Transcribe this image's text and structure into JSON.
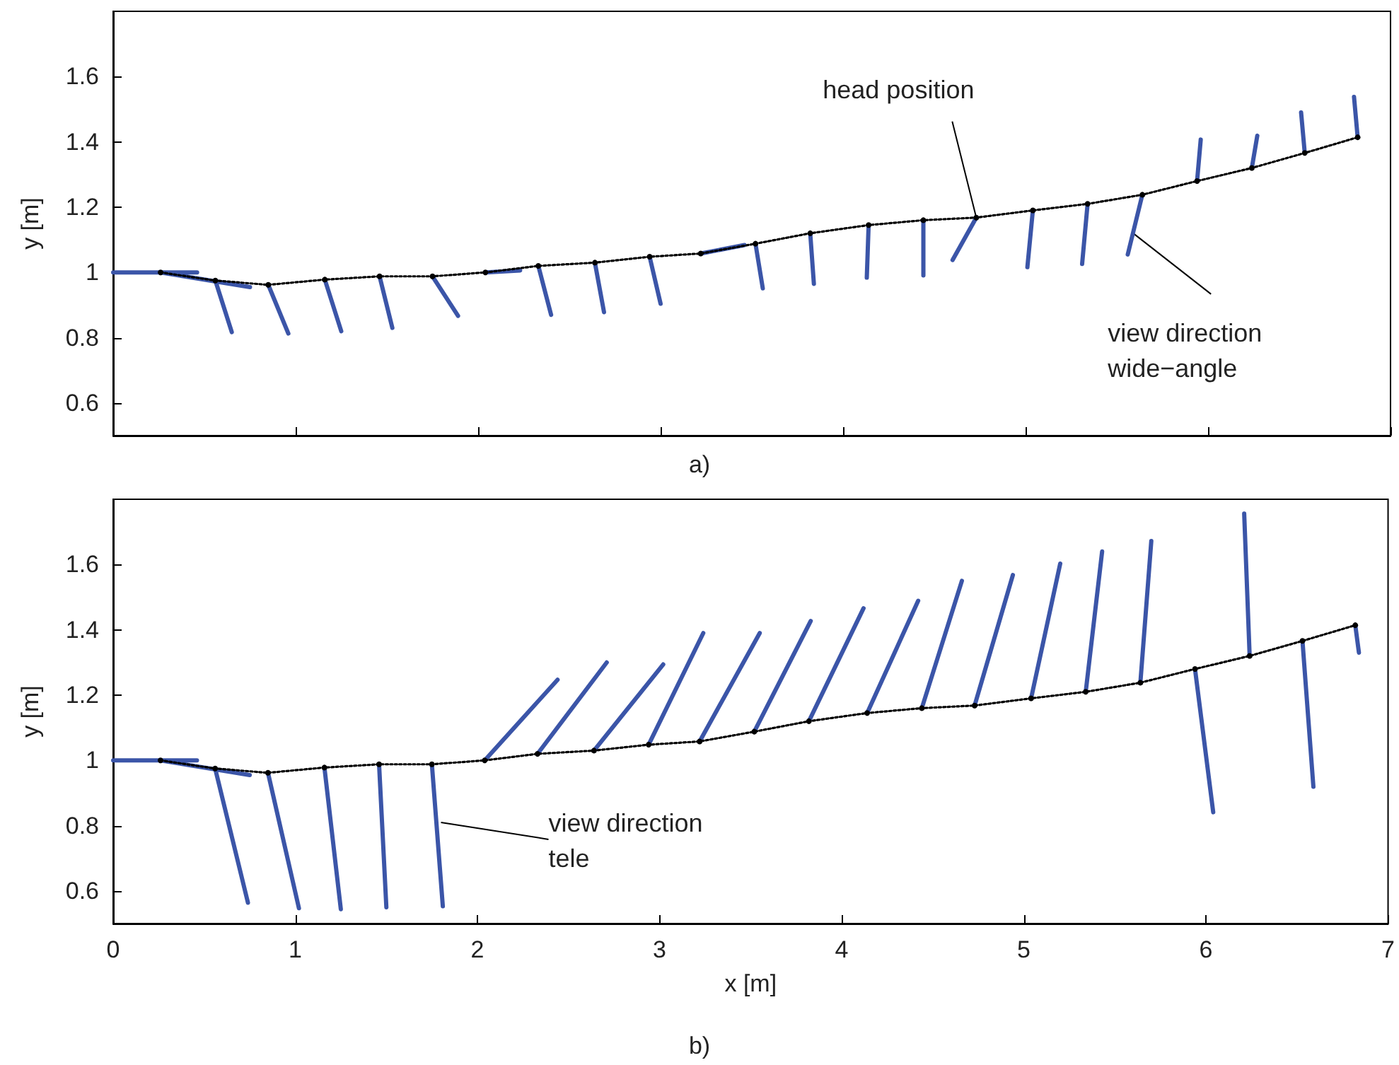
{
  "chart_data": [
    {
      "type": "line",
      "ylabel": "y [m]",
      "xlim": [
        0,
        7
      ],
      "xticks": [
        0,
        1,
        2,
        3,
        4,
        5,
        6,
        7
      ],
      "ylim": [
        0.5,
        1.8
      ],
      "yticks": [
        0.6,
        0.8,
        1,
        1.2,
        1.4,
        1.6
      ],
      "tick_labels": "y",
      "grid": false,
      "series": [
        {
          "color": "#3b55a8",
          "line_style": "solid",
          "marker": "none",
          "x": [
            0,
            0.46,
            null,
            0.26,
            0.75,
            null,
            0.56,
            0.65,
            null,
            0.85,
            0.96,
            null,
            1.16,
            1.25,
            null,
            1.46,
            1.53,
            null,
            1.75,
            1.89,
            null,
            2.04,
            2.23,
            null,
            2.33,
            2.4,
            null,
            2.64,
            2.69,
            null,
            2.94,
            3.0,
            null,
            3.22,
            3.46,
            null,
            3.52,
            3.56,
            null,
            3.82,
            3.84,
            null,
            4.14,
            4.13,
            null,
            4.44,
            4.44,
            null,
            4.73,
            4.6,
            null,
            5.04,
            5.01,
            null,
            5.34,
            5.31,
            null,
            5.64,
            5.56,
            null,
            5.94,
            5.96,
            null,
            6.24,
            6.27,
            null,
            6.53,
            6.51,
            null,
            6.82,
            6.8
          ],
          "values": [
            1.0,
            1.0,
            null,
            1.0,
            0.955,
            null,
            0.975,
            0.817,
            null,
            0.962,
            0.813,
            null,
            0.978,
            0.82,
            null,
            0.988,
            0.83,
            null,
            0.988,
            0.867,
            null,
            1.0,
            1.006,
            null,
            1.02,
            0.87,
            null,
            1.03,
            0.878,
            null,
            1.048,
            0.904,
            null,
            1.058,
            1.084,
            null,
            1.088,
            0.951,
            null,
            1.12,
            0.965,
            null,
            1.145,
            0.984,
            null,
            1.16,
            0.991,
            null,
            1.168,
            1.038,
            null,
            1.19,
            1.016,
            null,
            1.21,
            1.026,
            null,
            1.238,
            1.055,
            null,
            1.28,
            1.407,
            null,
            1.32,
            1.419,
            null,
            1.366,
            1.49,
            null,
            1.414,
            1.538
          ]
        },
        {
          "color": "#000000",
          "line_style": "dotted",
          "marker": "circle",
          "x": [
            0.26,
            0.56,
            0.85,
            1.16,
            1.46,
            1.75,
            2.04,
            2.33,
            2.64,
            2.94,
            3.22,
            3.52,
            3.82,
            4.14,
            4.44,
            4.73,
            5.04,
            5.34,
            5.64,
            5.94,
            6.24,
            6.53,
            6.82
          ],
          "values": [
            1.0,
            0.975,
            0.962,
            0.978,
            0.988,
            0.988,
            1.0,
            1.02,
            1.03,
            1.048,
            1.058,
            1.088,
            1.12,
            1.145,
            1.16,
            1.168,
            1.19,
            1.21,
            1.238,
            1.28,
            1.32,
            1.366,
            1.414
          ]
        }
      ],
      "annotations": [
        "a)",
        {
          "text": "head position",
          "x": 4.73,
          "y": 1.168
        },
        {
          "text": "view direction\nwide−angle",
          "x": 5.59,
          "y": 1.12
        }
      ]
    },
    {
      "type": "line",
      "xlabel": "x [m]",
      "ylabel": "y [m]",
      "xlim": [
        0,
        7
      ],
      "xticks": [
        0,
        1,
        2,
        3,
        4,
        5,
        6,
        7
      ],
      "ylim": [
        0.5,
        1.8
      ],
      "yticks": [
        0.6,
        0.8,
        1,
        1.2,
        1.4,
        1.6
      ],
      "grid": false,
      "series": [
        {
          "color": "#3b55a8",
          "line_style": "solid",
          "marker": "none",
          "x": [
            0,
            0.46,
            null,
            0.26,
            0.75,
            null,
            0.56,
            0.74,
            null,
            0.85,
            1.02,
            null,
            1.16,
            1.25,
            null,
            1.46,
            1.5,
            null,
            1.75,
            1.81,
            null,
            2.04,
            2.44,
            null,
            2.33,
            2.71,
            null,
            2.64,
            3.02,
            null,
            2.94,
            3.24,
            null,
            3.22,
            3.55,
            null,
            3.52,
            3.83,
            null,
            3.82,
            4.12,
            null,
            4.14,
            4.42,
            null,
            4.44,
            4.66,
            null,
            4.73,
            4.94,
            null,
            5.04,
            5.2,
            null,
            5.34,
            5.43,
            null,
            5.64,
            5.7,
            null,
            5.94,
            6.04,
            null,
            6.24,
            6.21,
            null,
            6.53,
            6.59,
            null,
            6.82,
            6.84
          ],
          "values": [
            1.0,
            1.0,
            null,
            1.0,
            0.955,
            null,
            0.975,
            0.564,
            null,
            0.962,
            0.547,
            null,
            0.978,
            0.544,
            null,
            0.988,
            0.55,
            null,
            0.988,
            0.553,
            null,
            1.0,
            1.247,
            null,
            1.02,
            1.3,
            null,
            1.03,
            1.294,
            null,
            1.048,
            1.39,
            null,
            1.058,
            1.39,
            null,
            1.088,
            1.427,
            null,
            1.12,
            1.466,
            null,
            1.145,
            1.489,
            null,
            1.16,
            1.55,
            null,
            1.168,
            1.568,
            null,
            1.19,
            1.603,
            null,
            1.21,
            1.64,
            null,
            1.238,
            1.672,
            null,
            1.28,
            0.841,
            null,
            1.32,
            1.756,
            null,
            1.366,
            0.919,
            null,
            1.414,
            1.33
          ]
        },
        {
          "color": "#000000",
          "line_style": "dotted",
          "marker": "circle",
          "x": [
            0.26,
            0.56,
            0.85,
            1.16,
            1.46,
            1.75,
            2.04,
            2.33,
            2.64,
            2.94,
            3.22,
            3.52,
            3.82,
            4.14,
            4.44,
            4.73,
            5.04,
            5.34,
            5.64,
            5.94,
            6.24,
            6.53,
            6.82
          ],
          "values": [
            1.0,
            0.975,
            0.962,
            0.978,
            0.988,
            0.988,
            1.0,
            1.02,
            1.03,
            1.048,
            1.058,
            1.088,
            1.12,
            1.145,
            1.16,
            1.168,
            1.19,
            1.21,
            1.238,
            1.28,
            1.32,
            1.366,
            1.414
          ]
        }
      ],
      "annotations": [
        "b)",
        {
          "text": "view direction\ntele",
          "x": 1.8,
          "y": 0.81
        }
      ]
    }
  ]
}
